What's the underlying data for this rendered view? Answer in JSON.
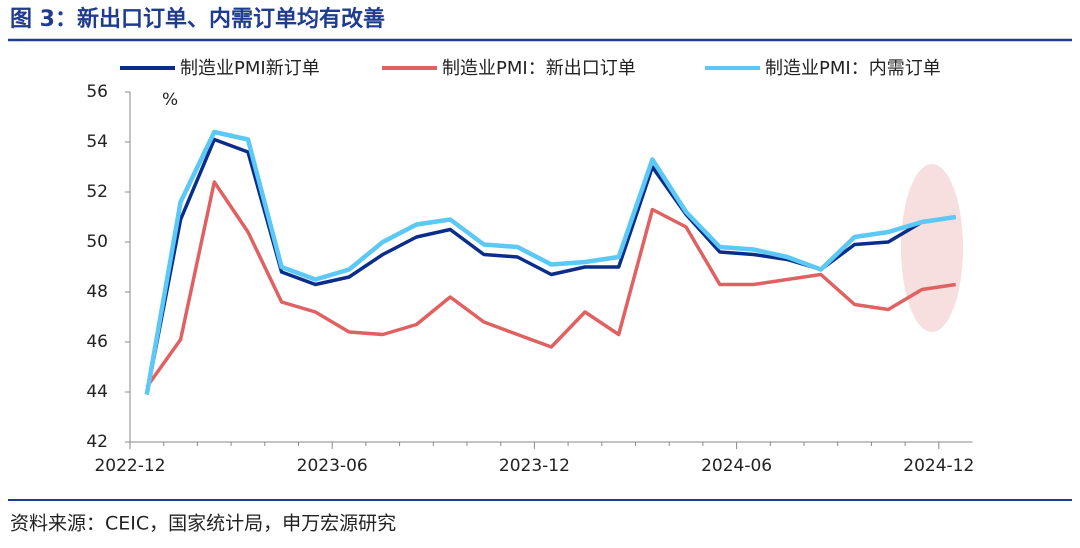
{
  "chart_data": {
    "type": "line",
    "title": "图 3：新出口订单、内需订单均有改善",
    "y_unit": "%",
    "source": "资料来源：CEIC，国家统计局，申万宏源研究",
    "categories": [
      "2022-12",
      null,
      null,
      null,
      null,
      null,
      "2023-06",
      null,
      null,
      null,
      null,
      null,
      "2023-12",
      null,
      null,
      null,
      null,
      null,
      "2024-06",
      null,
      null,
      null,
      null,
      null,
      "2024-12"
    ],
    "series": [
      {
        "name": "制造业PMI新订单",
        "color": "#0a2d8a",
        "values": [
          43.9,
          50.9,
          54.1,
          53.6,
          48.8,
          48.3,
          48.6,
          49.5,
          50.2,
          50.5,
          49.5,
          49.4,
          48.7,
          49.0,
          49.0,
          53.0,
          51.1,
          49.6,
          49.5,
          49.3,
          48.9,
          49.9,
          50.0,
          50.8,
          51.0
        ]
      },
      {
        "name": "制造业PMI：新出口订单",
        "color": "#e06161",
        "values": [
          44.2,
          46.1,
          52.4,
          50.4,
          47.6,
          47.2,
          46.4,
          46.3,
          46.7,
          47.8,
          46.8,
          46.3,
          45.8,
          47.2,
          46.3,
          51.3,
          50.6,
          48.3,
          48.3,
          48.5,
          48.7,
          47.5,
          47.3,
          48.1,
          48.3
        ]
      },
      {
        "name": "制造业PMI：内需订单",
        "color": "#5bc8f5",
        "values": [
          43.9,
          51.6,
          54.4,
          54.1,
          49.0,
          48.5,
          48.9,
          50.0,
          50.7,
          50.9,
          49.9,
          49.8,
          49.1,
          49.2,
          49.4,
          53.3,
          51.2,
          49.8,
          49.7,
          49.4,
          48.9,
          50.2,
          50.4,
          50.8,
          51.0
        ]
      }
    ],
    "ylim": [
      42,
      56
    ],
    "yticks": [
      42,
      44,
      46,
      48,
      50,
      52,
      54,
      56
    ],
    "grid": false
  }
}
